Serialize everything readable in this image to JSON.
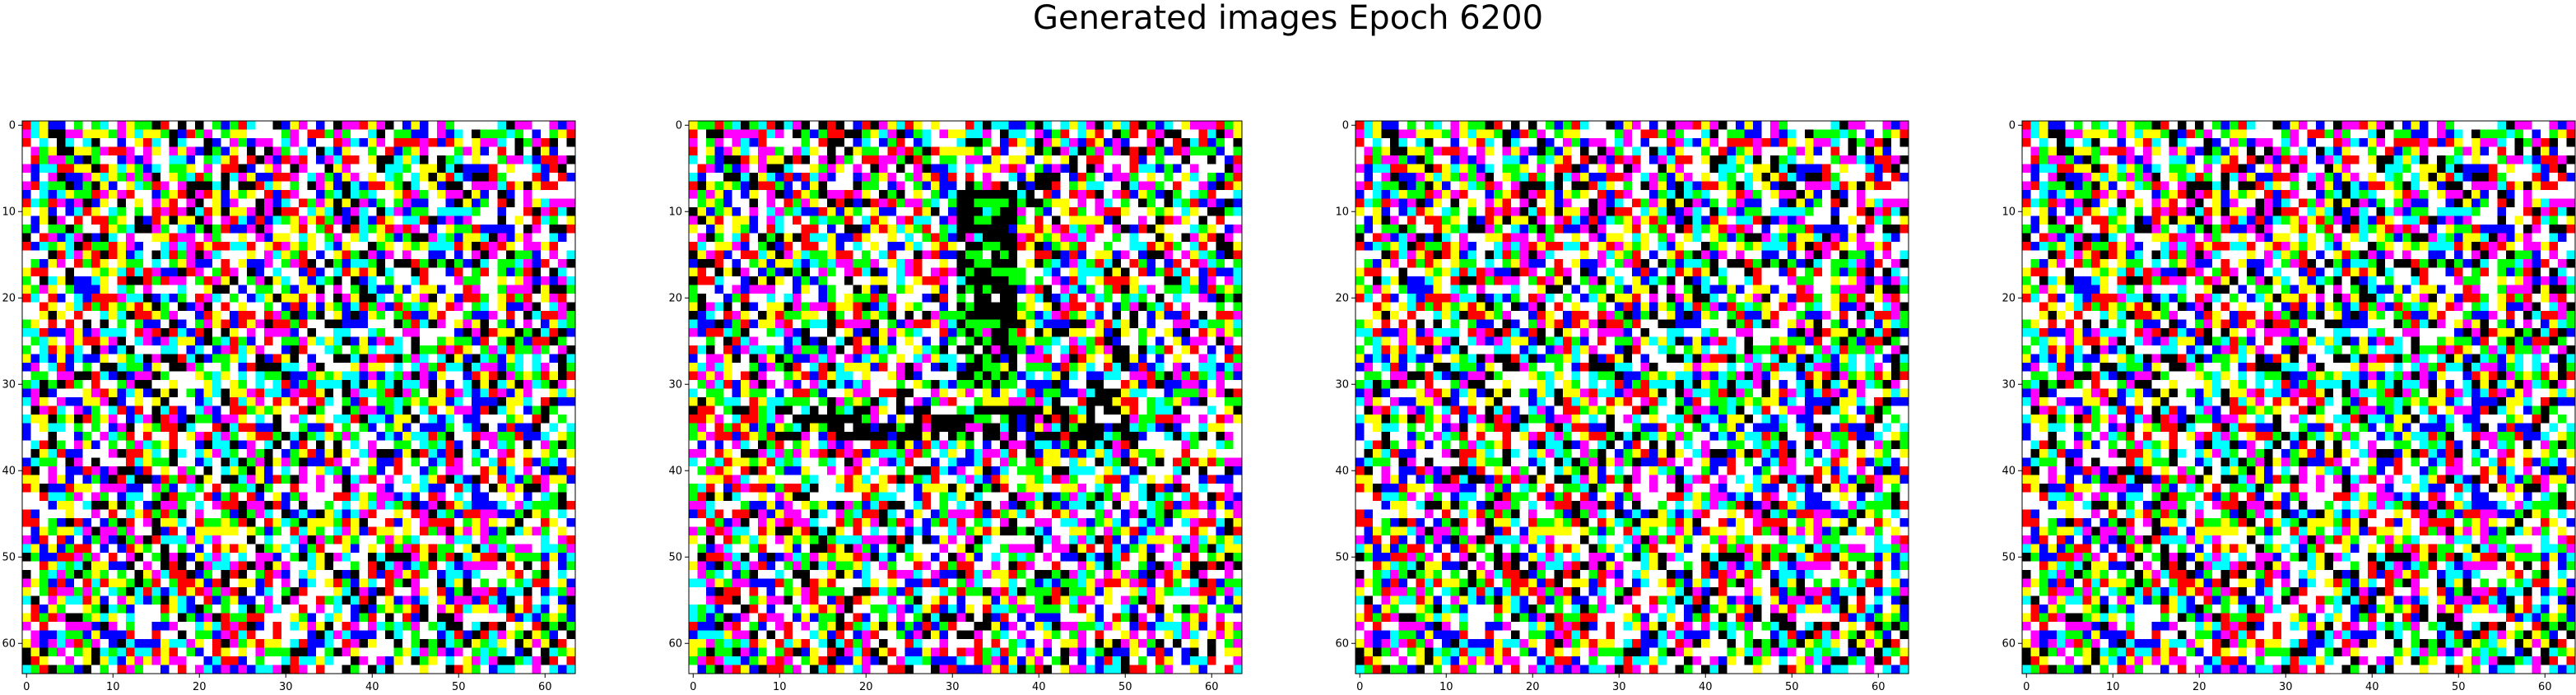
{
  "figure": {
    "title": "Generated images Epoch 6200"
  },
  "chart_data": [
    {
      "type": "heatmap",
      "xlim": [
        -0.5,
        63.5
      ],
      "ylim": [
        63.5,
        -0.5
      ],
      "x_ticks": [
        "0",
        "10",
        "20",
        "30",
        "40",
        "50",
        "60"
      ],
      "y_ticks": [
        "0",
        "10",
        "20",
        "30",
        "40",
        "50",
        "60"
      ],
      "palette": [
        "#ffffff",
        "#ffffff",
        "#ffff00",
        "#ff00ff",
        "#00ffff",
        "#00ff00",
        "#0000ff",
        "#ff0000",
        "#000000"
      ]
    },
    {
      "type": "heatmap",
      "xlim": [
        -0.5,
        63.5
      ],
      "ylim": [
        63.5,
        -0.5
      ],
      "x_ticks": [
        "0",
        "10",
        "20",
        "30",
        "40",
        "50",
        "60"
      ],
      "y_ticks": [
        "0",
        "10",
        "20",
        "30",
        "40",
        "50",
        "60"
      ],
      "palette": [
        "#ffffff",
        "#ffffff",
        "#ffff00",
        "#ff00ff",
        "#00ffff",
        "#00ff00",
        "#0000ff",
        "#ff0000",
        "#000000"
      ]
    },
    {
      "type": "heatmap",
      "xlim": [
        -0.5,
        63.5
      ],
      "ylim": [
        63.5,
        -0.5
      ],
      "x_ticks": [
        "0",
        "10",
        "20",
        "30",
        "40",
        "50",
        "60"
      ],
      "y_ticks": [
        "0",
        "10",
        "20",
        "30",
        "40",
        "50",
        "60"
      ],
      "palette": [
        "#ffffff",
        "#ffffff",
        "#ffff00",
        "#ff00ff",
        "#00ffff",
        "#00ff00",
        "#0000ff",
        "#ff0000",
        "#000000"
      ]
    },
    {
      "type": "heatmap",
      "xlim": [
        -0.5,
        63.5
      ],
      "ylim": [
        63.5,
        -0.5
      ],
      "x_ticks": [
        "0",
        "10",
        "20",
        "30",
        "40",
        "50",
        "60"
      ],
      "y_ticks": [
        "0",
        "10",
        "20",
        "30",
        "40",
        "50",
        "60"
      ],
      "palette": [
        "#ffffff",
        "#ffffff",
        "#ffff00",
        "#ff00ff",
        "#00ffff",
        "#00ff00",
        "#0000ff",
        "#ff0000",
        "#000000"
      ]
    }
  ]
}
